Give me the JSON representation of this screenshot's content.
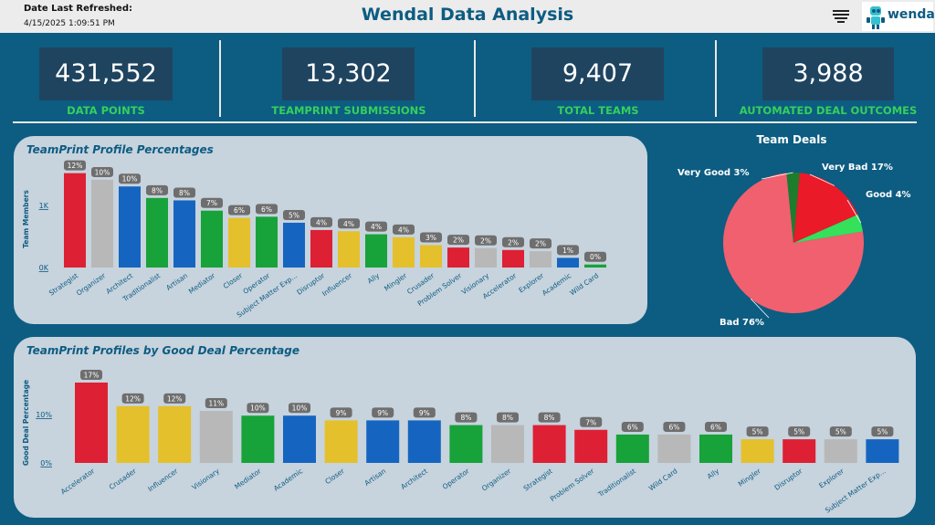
{
  "header": {
    "refresh_title": "Date Last Refreshed:",
    "refresh_time": "4/15/2025 1:09:51 PM",
    "title": "Wendal Data Analysis",
    "menu_icon": "hamburger-menu-icon",
    "logo_text": "wendal"
  },
  "kpis": [
    {
      "value": "431,552",
      "label": "DATA POINTS"
    },
    {
      "value": "13,302",
      "label": "TEAMPRINT SUBMISSIONS"
    },
    {
      "value": "9,407",
      "label": "TOTAL TEAMS"
    },
    {
      "value": "3,988",
      "label": "AUTOMATED DEAL OUTCOMES"
    }
  ],
  "colors": {
    "red": "#dd2034",
    "gray": "#b8b8b8",
    "blue": "#1565c0",
    "green": "#17a23a",
    "yellow": "#e4c02c",
    "kpi_label": "#35d05a",
    "brand": "#0d5c82"
  },
  "chart_data": [
    {
      "type": "bar",
      "title": "TeamPrint Profile Percentages",
      "ylabel": "Team Members",
      "yticks": [
        "1K",
        "0K"
      ],
      "categories": [
        "Strategist",
        "Organizer",
        "Architect",
        "Traditionalist",
        "Artisan",
        "Mediator",
        "Closer",
        "Operator",
        "Subject Matter Exp...",
        "Disruptor",
        "Influencer",
        "Ally",
        "Mingler",
        "Crusader",
        "Problem Solver",
        "Visionary",
        "Accelerator",
        "Explorer",
        "Academic",
        "Wild Card"
      ],
      "values": [
        1560,
        1450,
        1340,
        1150,
        1110,
        940,
        820,
        840,
        740,
        620,
        600,
        550,
        500,
        370,
        330,
        320,
        290,
        270,
        160,
        50
      ],
      "labels": [
        "12%",
        "10%",
        "10%",
        "8%",
        "8%",
        "7%",
        "6%",
        "6%",
        "5%",
        "4%",
        "4%",
        "4%",
        "4%",
        "3%",
        "2%",
        "2%",
        "2%",
        "2%",
        "1%",
        "0%"
      ],
      "colors": [
        "red",
        "gray",
        "blue",
        "green",
        "blue",
        "green",
        "yellow",
        "green",
        "blue",
        "red",
        "yellow",
        "green",
        "yellow",
        "yellow",
        "red",
        "gray",
        "red",
        "gray",
        "blue",
        "green"
      ],
      "ylim": [
        0,
        1600
      ]
    },
    {
      "type": "pie",
      "title": "Team Deals",
      "slices": [
        {
          "label": "Bad 76%",
          "value": 76,
          "color": "#f0606e"
        },
        {
          "label": "Very Good 3%",
          "value": 3,
          "color": "#1e7d2d"
        },
        {
          "label": "Very Bad 17%",
          "value": 17,
          "color": "#ea1a28"
        },
        {
          "label": "Good 4%",
          "value": 4,
          "color": "#35e05a"
        }
      ]
    },
    {
      "type": "bar",
      "title": "TeamPrint Profiles by Good Deal Percentage",
      "ylabel": "Good Deal Percentage",
      "yticks": [
        "10%",
        "0%"
      ],
      "categories": [
        "Accelerator",
        "Crusader",
        "Influencer",
        "Visionary",
        "Mediator",
        "Academic",
        "Closer",
        "Artisan",
        "Architect",
        "Operator",
        "Organizer",
        "Strategist",
        "Problem Solver",
        "Traditionalist",
        "Wild Card",
        "Ally",
        "Mingler",
        "Disruptor",
        "Explorer",
        "Subject Matter Exp..."
      ],
      "values": [
        17,
        12,
        12,
        11,
        10,
        10,
        9,
        9,
        9,
        8,
        8,
        8,
        7,
        6,
        6,
        6,
        5,
        5,
        5,
        5
      ],
      "labels": [
        "17%",
        "12%",
        "12%",
        "11%",
        "10%",
        "10%",
        "9%",
        "9%",
        "9%",
        "8%",
        "8%",
        "8%",
        "7%",
        "6%",
        "6%",
        "6%",
        "5%",
        "5%",
        "5%",
        "5%"
      ],
      "colors": [
        "red",
        "yellow",
        "yellow",
        "gray",
        "green",
        "blue",
        "yellow",
        "blue",
        "blue",
        "green",
        "gray",
        "red",
        "red",
        "green",
        "gray",
        "green",
        "yellow",
        "red",
        "gray",
        "blue"
      ],
      "ylim": [
        0,
        17
      ]
    }
  ]
}
